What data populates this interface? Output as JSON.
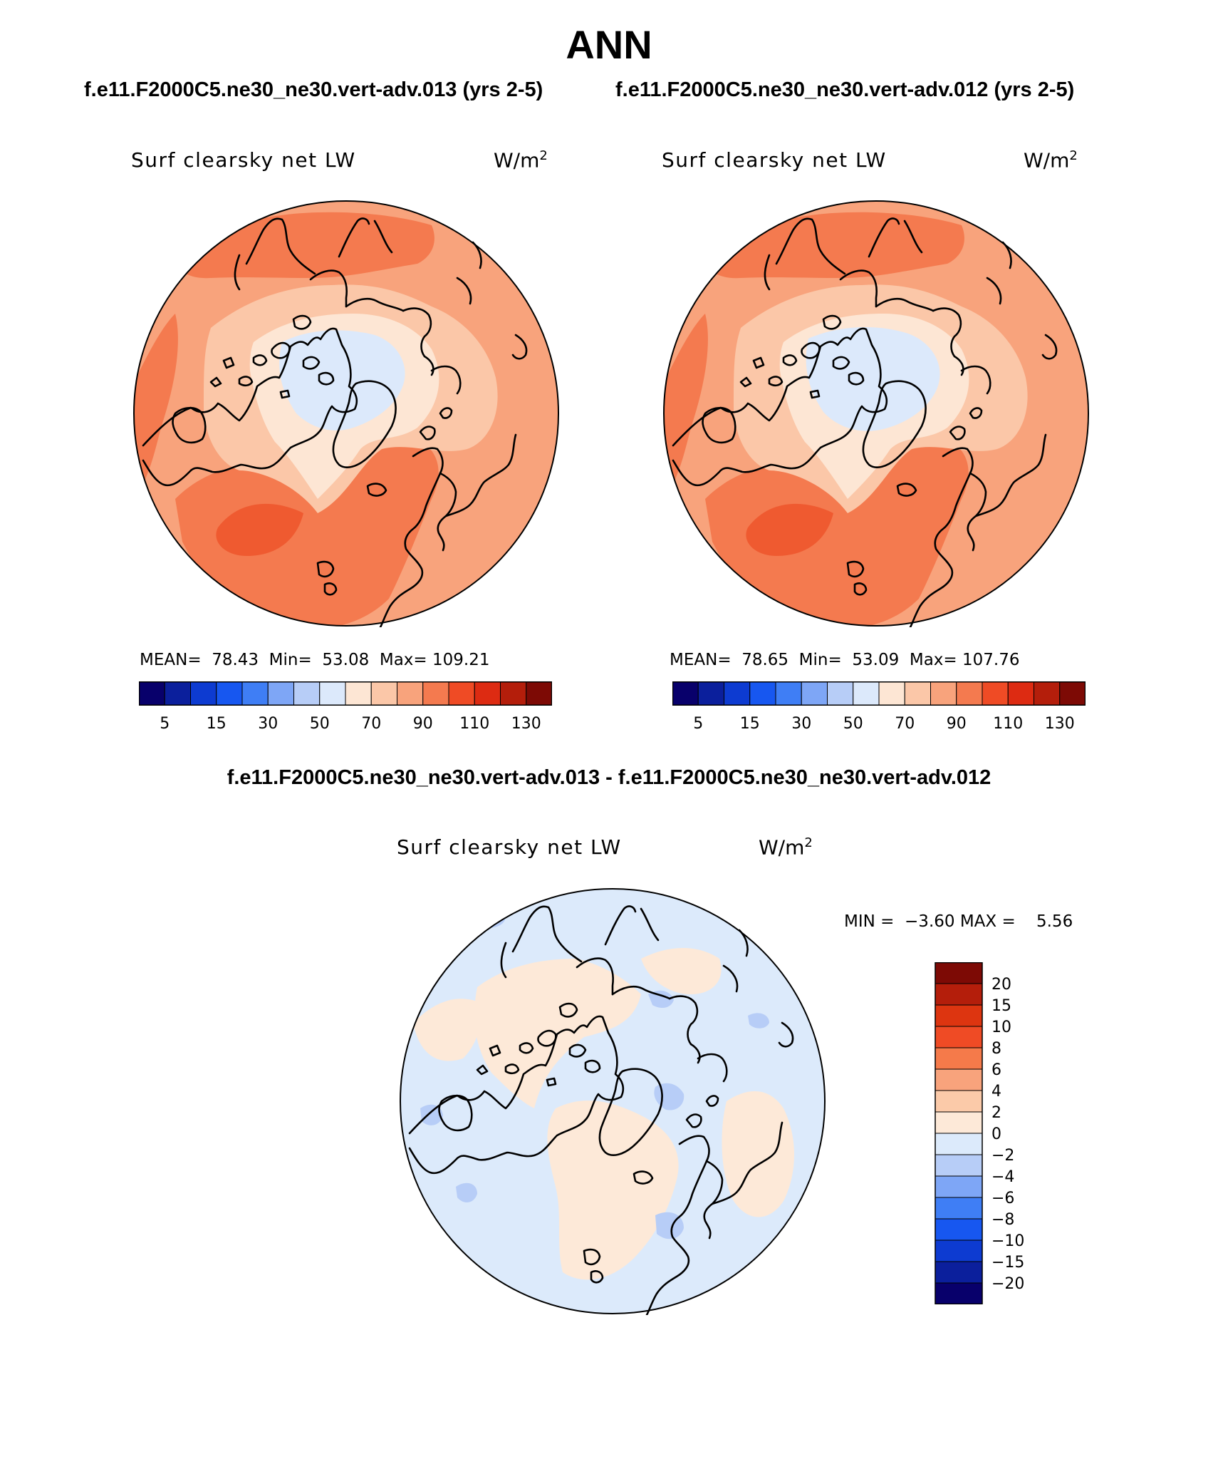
{
  "header": {
    "title": "ANN",
    "case_left": "f.e11.F2000C5.ne30_ne30.vert-adv.013 (yrs 2-5)",
    "case_right": "f.e11.F2000C5.ne30_ne30.vert-adv.012 (yrs 2-5)",
    "diff_title": "f.e11.F2000C5.ne30_ne30.vert-adv.013 - f.e11.F2000C5.ne30_ne30.vert-adv.012"
  },
  "panels": {
    "left": {
      "label": "Surf clearsky net LW",
      "units": "W/m",
      "units_exp": "2",
      "stats": "MEAN=  78.43  Min=  53.08  Max= 109.21"
    },
    "right": {
      "label": "Surf clearsky net LW",
      "units": "W/m",
      "units_exp": "2",
      "stats": "MEAN=  78.65  Min=  53.09  Max= 107.76"
    },
    "diff": {
      "label": "Surf clearsky net LW",
      "units": "W/m",
      "units_exp": "2",
      "minmax": "MIN =  −3.60 MAX =    5.56"
    }
  },
  "colorbar_abs": {
    "colors": [
      "#08006b",
      "#0b1f9c",
      "#0d3bd1",
      "#1757f0",
      "#3f7ef5",
      "#7ea6f6",
      "#b7cdf7",
      "#dce9fb",
      "#fde6d4",
      "#fbc7a8",
      "#f8a37c",
      "#f47a4f",
      "#ef4b25",
      "#dd2b12",
      "#b41e0b",
      "#7d0a05"
    ],
    "labels": [
      "5",
      "15",
      "30",
      "50",
      "70",
      "90",
      "110",
      "130"
    ]
  },
  "colorbar_diff": {
    "colors": [
      "#7d0a05",
      "#b41e0b",
      "#dd3510",
      "#ef4b25",
      "#f57a4a",
      "#f8a37c",
      "#fbcaa9",
      "#fde9d8",
      "#dceafb",
      "#b7cdf7",
      "#7ea6f6",
      "#3f7ef5",
      "#1757f0",
      "#0d3bd1",
      "#0b1f9c",
      "#08006b"
    ],
    "labels": [
      "20",
      "15",
      "10",
      "8",
      "6",
      "4",
      "2",
      "0",
      "−2",
      "−4",
      "−6",
      "−8",
      "−10",
      "−15",
      "−20"
    ]
  }
}
